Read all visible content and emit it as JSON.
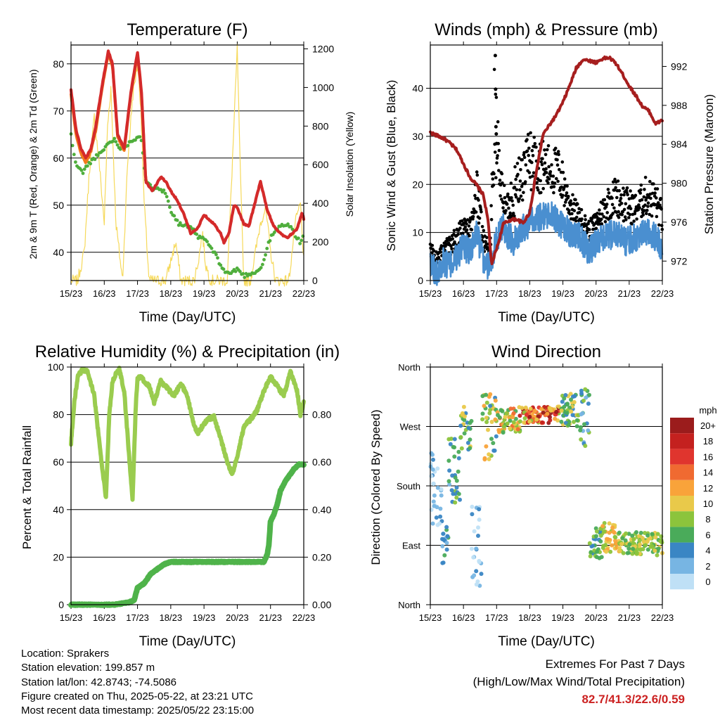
{
  "chart_data": [
    {
      "type": "line",
      "title": "Temperature (F)",
      "xlabel": "Time (Day/UTC)",
      "ylabel": "2m & 9m T (Red, Orange) & 2m Td (Green)",
      "y2label": "Solar Insolation (Yellow)",
      "xticks": [
        "15/23",
        "16/23",
        "17/23",
        "18/23",
        "19/23",
        "20/23",
        "21/23",
        "22/23"
      ],
      "xlim": [
        0,
        7
      ],
      "ylim": [
        34,
        84
      ],
      "yticks": [
        40,
        50,
        60,
        70,
        80
      ],
      "y2lim": [
        0,
        1220
      ],
      "y2ticks": [
        0,
        200,
        400,
        600,
        800,
        1000,
        1200
      ],
      "series": [
        {
          "name": "2m T",
          "color": "#d42a2a",
          "x": [
            0,
            0.15,
            0.3,
            0.45,
            0.6,
            0.75,
            0.95,
            1.12,
            1.25,
            1.4,
            1.6,
            1.8,
            2.0,
            2.12,
            2.25,
            2.45,
            2.7,
            2.85,
            3.0,
            3.2,
            3.4,
            3.6,
            3.8,
            4.0,
            4.15,
            4.3,
            4.5,
            4.6,
            4.75,
            4.9,
            5.0,
            5.2,
            5.35,
            5.55,
            5.7,
            5.9,
            6.1,
            6.3,
            6.5,
            6.65,
            6.8,
            6.95,
            7.0
          ],
          "y": [
            74.5,
            66,
            62,
            60,
            62,
            67,
            76,
            82.7,
            80,
            65,
            62,
            74,
            82.5,
            74,
            55,
            53,
            56,
            55,
            53,
            51,
            48,
            44,
            45,
            48,
            47,
            46,
            44,
            42,
            44,
            50,
            49.5,
            46,
            45.5,
            51,
            55,
            49,
            45.5,
            44,
            43,
            44,
            45,
            48.5,
            47
          ]
        },
        {
          "name": "9m T",
          "color": "#f27a1c",
          "x": [
            0,
            0.15,
            0.3,
            0.45,
            0.6,
            0.75,
            0.95,
            1.12,
            1.25,
            1.4,
            1.6,
            1.8,
            2.0,
            2.12,
            2.25
          ],
          "y": [
            73.5,
            65,
            61,
            59,
            61.5,
            66,
            75.5,
            82,
            79.5,
            64.5,
            61.5,
            73.5,
            82,
            73.5,
            55
          ]
        },
        {
          "name": "2m Td",
          "color": "#4fae3c",
          "x": [
            0,
            0.1,
            0.2,
            0.35,
            0.5,
            0.7,
            0.9,
            1.1,
            1.3,
            1.5,
            1.7,
            1.9,
            2.1,
            2.25,
            2.45,
            2.6,
            2.85,
            3.0,
            3.25,
            3.5,
            3.7,
            3.85,
            4.0,
            4.3,
            4.6,
            4.8,
            5.0,
            5.2,
            5.4,
            5.6,
            5.75,
            5.9,
            6.0,
            6.2,
            6.4,
            6.6,
            6.8,
            6.9,
            7.0
          ],
          "y": [
            65,
            60,
            58,
            57,
            58.5,
            60,
            61,
            63,
            64,
            62,
            63,
            64,
            65,
            55,
            53.5,
            54,
            52.5,
            49,
            46,
            45.5,
            44.5,
            43,
            43,
            40,
            36,
            35.5,
            36.5,
            35,
            35.5,
            36,
            37,
            41,
            43,
            45,
            46,
            45.5,
            43,
            42,
            44
          ]
        },
        {
          "name": "Solar Insolation",
          "color": "#f6d95a",
          "axis": "y2",
          "x": [
            0,
            0.2,
            0.4,
            0.55,
            0.7,
            0.85,
            1.0,
            1.1,
            1.2,
            1.35,
            1.55,
            1.7,
            1.85,
            2.0,
            2.1,
            2.2,
            2.35,
            2.6,
            2.85,
            3.0,
            3.15,
            3.3,
            3.5,
            3.7,
            3.85,
            3.95,
            4.05,
            4.2,
            4.5,
            4.7,
            4.85,
            5.0,
            5.1,
            5.2,
            5.4,
            5.7,
            5.85,
            6.0,
            6.15,
            6.3,
            6.55,
            6.75,
            6.9,
            7.0
          ],
          "y": [
            0,
            0,
            150,
            560,
            850,
            600,
            300,
            800,
            1000,
            300,
            0,
            600,
            950,
            1120,
            900,
            400,
            0,
            0,
            0,
            100,
            200,
            0,
            0,
            0,
            120,
            250,
            80,
            0,
            0,
            0,
            600,
            1200,
            500,
            0,
            0,
            300,
            380,
            150,
            0,
            0,
            0,
            300,
            400,
            100
          ]
        }
      ]
    },
    {
      "type": "line",
      "title": "Winds (mph) & Pressure (mb)",
      "xlabel": "Time (Day/UTC)",
      "ylabel": "Sonic Wind & Gust (Blue, Black)",
      "y2label": "Station Pressure (Maroon)",
      "xticks": [
        "15/23",
        "16/23",
        "17/23",
        "18/23",
        "19/23",
        "20/23",
        "21/23",
        "22/23"
      ],
      "xlim": [
        0,
        7
      ],
      "ylim": [
        0,
        49
      ],
      "yticks": [
        0,
        10,
        20,
        30,
        40
      ],
      "y2lim": [
        970.0,
        994.2
      ],
      "y2ticks": [
        972,
        976,
        980,
        984,
        988,
        992
      ],
      "series": [
        {
          "name": "Sonic Wind",
          "color": "#4a8fd0",
          "x": [
            0,
            0.2,
            0.4,
            0.6,
            0.8,
            1.0,
            1.2,
            1.4,
            1.6,
            1.8,
            2.0,
            2.2,
            2.5,
            2.8,
            3.0,
            3.3,
            3.6,
            3.9,
            4.2,
            4.5,
            4.8,
            5.0,
            5.3,
            5.6,
            5.9,
            6.2,
            6.5,
            6.8,
            7.0
          ],
          "y": [
            3,
            2,
            4,
            3,
            5,
            7,
            6,
            10,
            4,
            3,
            9,
            11,
            8,
            11,
            12,
            13,
            14,
            12,
            10,
            9,
            6,
            8,
            9,
            10,
            8,
            9,
            10,
            9,
            7
          ]
        },
        {
          "name": "Gust",
          "color": "#000000",
          "x": [
            0,
            0.2,
            0.4,
            0.6,
            0.8,
            1.0,
            1.2,
            1.4,
            1.6,
            1.8,
            1.95,
            2.1,
            2.3,
            2.5,
            2.8,
            3.0,
            3.3,
            3.6,
            3.9,
            4.2,
            4.5,
            4.8,
            5.0,
            5.3,
            5.6,
            5.9,
            6.2,
            6.5,
            6.8,
            7.0
          ],
          "y": [
            7,
            5,
            7,
            8,
            10,
            12,
            11,
            20,
            10,
            6,
            40,
            22,
            16,
            20,
            24,
            28,
            26,
            25,
            24,
            17,
            14,
            11,
            13,
            17,
            19,
            17,
            16,
            19,
            18,
            14
          ]
        },
        {
          "name": "Station Pressure",
          "color": "#a61e1e",
          "axis": "y2",
          "x": [
            0,
            0.2,
            0.4,
            0.6,
            0.8,
            1.0,
            1.2,
            1.4,
            1.6,
            1.75,
            1.85,
            1.95,
            2.05,
            2.2,
            2.4,
            2.6,
            2.8,
            3.0,
            3.2,
            3.4,
            3.6,
            3.8,
            4.0,
            4.2,
            4.4,
            4.6,
            4.8,
            5.0,
            5.2,
            5.4,
            5.6,
            5.8,
            6.0,
            6.2,
            6.4,
            6.6,
            6.8,
            7.0
          ],
          "y": [
            985.2,
            984.9,
            984.6,
            984.1,
            983.4,
            982.0,
            980.6,
            979.8,
            978.8,
            976.0,
            971.5,
            972.8,
            973.8,
            975.8,
            976.2,
            976.3,
            975.9,
            977.0,
            981.2,
            985.0,
            986.0,
            987.0,
            988.3,
            990.0,
            991.8,
            992.7,
            992.6,
            992.4,
            992.8,
            992.9,
            992.3,
            991.2,
            990.0,
            989.0,
            987.9,
            987.4,
            986.1,
            986.5
          ]
        }
      ]
    },
    {
      "type": "line",
      "title": "Relative Humidity (%) & Precipitation (in)",
      "xlabel": "Time (Day/UTC)",
      "ylabel": "Percent & Total Rainfall",
      "xticks": [
        "15/23",
        "16/23",
        "17/23",
        "18/23",
        "19/23",
        "20/23",
        "21/23",
        "22/23"
      ],
      "xlim": [
        0,
        7
      ],
      "ylim": [
        0,
        100
      ],
      "yticks": [
        0,
        20,
        40,
        60,
        80,
        100
      ],
      "y2lim": [
        0,
        1.0
      ],
      "y2ticks": [
        "0.00",
        "0.20",
        "0.40",
        "0.60",
        "0.80"
      ],
      "series": [
        {
          "name": "Relative Humidity",
          "color": "#9acc4f",
          "x": [
            0,
            0.1,
            0.2,
            0.35,
            0.5,
            0.7,
            0.9,
            1.05,
            1.15,
            1.25,
            1.35,
            1.45,
            1.6,
            1.75,
            1.85,
            1.95,
            2.0,
            2.1,
            2.2,
            2.35,
            2.5,
            2.7,
            2.9,
            3.1,
            3.3,
            3.5,
            3.65,
            3.8,
            3.95,
            4.1,
            4.3,
            4.5,
            4.7,
            4.85,
            5.0,
            5.2,
            5.4,
            5.6,
            5.8,
            6.0,
            6.2,
            6.4,
            6.6,
            6.8,
            6.9,
            7.0
          ],
          "y": [
            68,
            85,
            96,
            99,
            98,
            88,
            62,
            45,
            80,
            94,
            97,
            99,
            90,
            62,
            44,
            84,
            95,
            96,
            94,
            92,
            85,
            94,
            91,
            88,
            93,
            88,
            78,
            72,
            75,
            78,
            79,
            70,
            60,
            55,
            62,
            75,
            78,
            82,
            90,
            96,
            92,
            88,
            98,
            90,
            80,
            85
          ]
        },
        {
          "name": "Total Precipitation",
          "color": "#4fb34a",
          "x": [
            0,
            1.3,
            1.75,
            1.9,
            2.0,
            2.2,
            2.4,
            2.6,
            2.8,
            3.0,
            4.0,
            5.0,
            5.8,
            5.9,
            5.95,
            6.0,
            6.1,
            6.2,
            6.3,
            6.45,
            6.6,
            6.7,
            6.85,
            7.0
          ],
          "y": [
            0,
            0,
            0.01,
            0.02,
            0.07,
            0.09,
            0.13,
            0.15,
            0.17,
            0.18,
            0.18,
            0.18,
            0.18,
            0.21,
            0.25,
            0.35,
            0.38,
            0.42,
            0.48,
            0.52,
            0.55,
            0.57,
            0.59,
            0.59
          ]
        }
      ]
    },
    {
      "type": "scatter",
      "title": "Wind Direction",
      "xlabel": "Time (Day/UTC)",
      "ylabel": "Direction (Colored By Speed)",
      "xticks": [
        "15/23",
        "16/23",
        "17/23",
        "18/23",
        "19/23",
        "20/23",
        "21/23",
        "22/23"
      ],
      "xlim": [
        0,
        7
      ],
      "yticks": [
        "North",
        "West",
        "South",
        "East",
        "North"
      ],
      "colorbar": {
        "title": "mph",
        "labels": [
          "20+",
          "18",
          "16",
          "14",
          "12",
          "10",
          "8",
          "6",
          "4",
          "2",
          "0"
        ],
        "colors": [
          "#9b1c1c",
          "#c4211f",
          "#e0352e",
          "#f06a31",
          "#f9a33a",
          "#e9c94a",
          "#8cc43c",
          "#4aab5a",
          "#3a86c4",
          "#77b5e3",
          "#bfe0f6"
        ]
      },
      "segments": [
        {
          "x": [
            0.0,
            0.35
          ],
          "dir": [
            120,
            230
          ],
          "speed": [
            0,
            5
          ]
        },
        {
          "x": [
            0.35,
            0.55
          ],
          "dir": [
            60,
            120
          ],
          "speed": [
            2,
            7
          ]
        },
        {
          "x": [
            0.55,
            0.9
          ],
          "dir": [
            150,
            260
          ],
          "speed": [
            3,
            9
          ]
        },
        {
          "x": [
            0.9,
            1.25
          ],
          "dir": [
            230,
            300
          ],
          "speed": [
            4,
            12
          ]
        },
        {
          "x": [
            1.25,
            1.55
          ],
          "dir": [
            20,
            150
          ],
          "speed": [
            0,
            5
          ]
        },
        {
          "x": [
            1.55,
            2.0
          ],
          "dir": [
            220,
            320
          ],
          "speed": [
            5,
            14
          ]
        },
        {
          "x": [
            2.0,
            2.7
          ],
          "dir": [
            260,
            300
          ],
          "speed": [
            6,
            16
          ]
        },
        {
          "x": [
            2.7,
            3.9
          ],
          "dir": [
            275,
            300
          ],
          "speed": [
            8,
            22
          ]
        },
        {
          "x": [
            3.9,
            4.5
          ],
          "dir": [
            270,
            320
          ],
          "speed": [
            5,
            12
          ]
        },
        {
          "x": [
            4.5,
            4.8
          ],
          "dir": [
            240,
            335
          ],
          "speed": [
            3,
            9
          ]
        },
        {
          "x": [
            4.8,
            5.2
          ],
          "dir": [
            70,
            120
          ],
          "speed": [
            5,
            10
          ]
        },
        {
          "x": [
            5.2,
            5.7
          ],
          "dir": [
            80,
            125
          ],
          "speed": [
            8,
            14
          ]
        },
        {
          "x": [
            5.7,
            7.0
          ],
          "dir": [
            75,
            110
          ],
          "speed": [
            6,
            12
          ]
        }
      ]
    }
  ],
  "station_info": {
    "location": "Location: Sprakers",
    "elevation": "Station elevation: 199.857 m",
    "latlon": "Station lat/lon: 42.8743; -74.5086",
    "created": "Figure created on Thu, 2025-05-22, at 23:21 UTC",
    "recent": "Most recent data timestamp: 2025/05/22 23:15:00"
  },
  "extremes": {
    "heading": "Extremes For Past 7 Days",
    "subheading": "(High/Low/Max Wind/Total Precipitation)",
    "values": "82.7/41.3/22.6/0.59"
  }
}
